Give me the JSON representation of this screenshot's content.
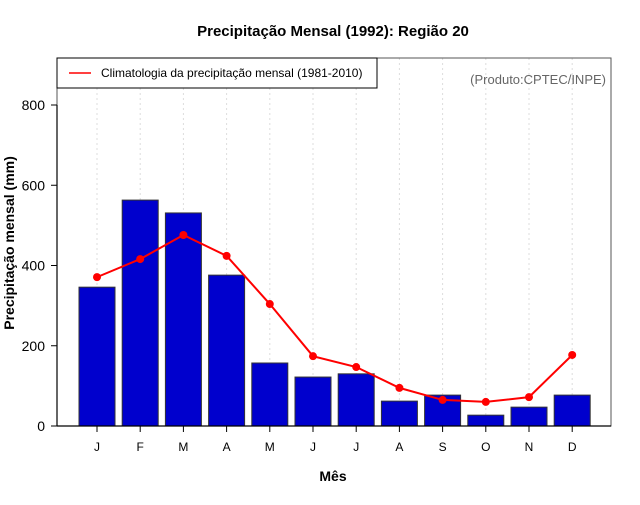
{
  "chart_data": {
    "type": "bar",
    "title": "Precipitação Mensal (1992): Região 20",
    "xlabel": "Mês",
    "ylabel": "Precipitação mensal (mm)",
    "ylim": [
      0,
      800
    ],
    "yticks": [
      0,
      200,
      400,
      600,
      800
    ],
    "grid": "vertical dotted",
    "categories": [
      "J",
      "F",
      "M",
      "A",
      "M",
      "J",
      "J",
      "A",
      "S",
      "O",
      "N",
      "D"
    ],
    "series": [
      {
        "name": "Precipitação mensal (1992)",
        "type": "bar",
        "color": "#0000CD",
        "values": [
          346,
          563,
          531,
          376,
          157,
          122,
          130,
          62,
          77,
          27,
          47,
          77
        ]
      },
      {
        "name": "Climatologia da precipitação mensal (1981-2010)",
        "type": "line",
        "color": "#FF0000",
        "values": [
          371,
          416,
          476,
          424,
          304,
          174,
          147,
          95,
          65,
          60,
          72,
          177
        ]
      }
    ],
    "legend": {
      "position": "top-left",
      "entries": [
        "Climatologia da precipitação mensal (1981-2010)"
      ]
    },
    "annotation": "(Produto:CPTEC/INPE)"
  }
}
